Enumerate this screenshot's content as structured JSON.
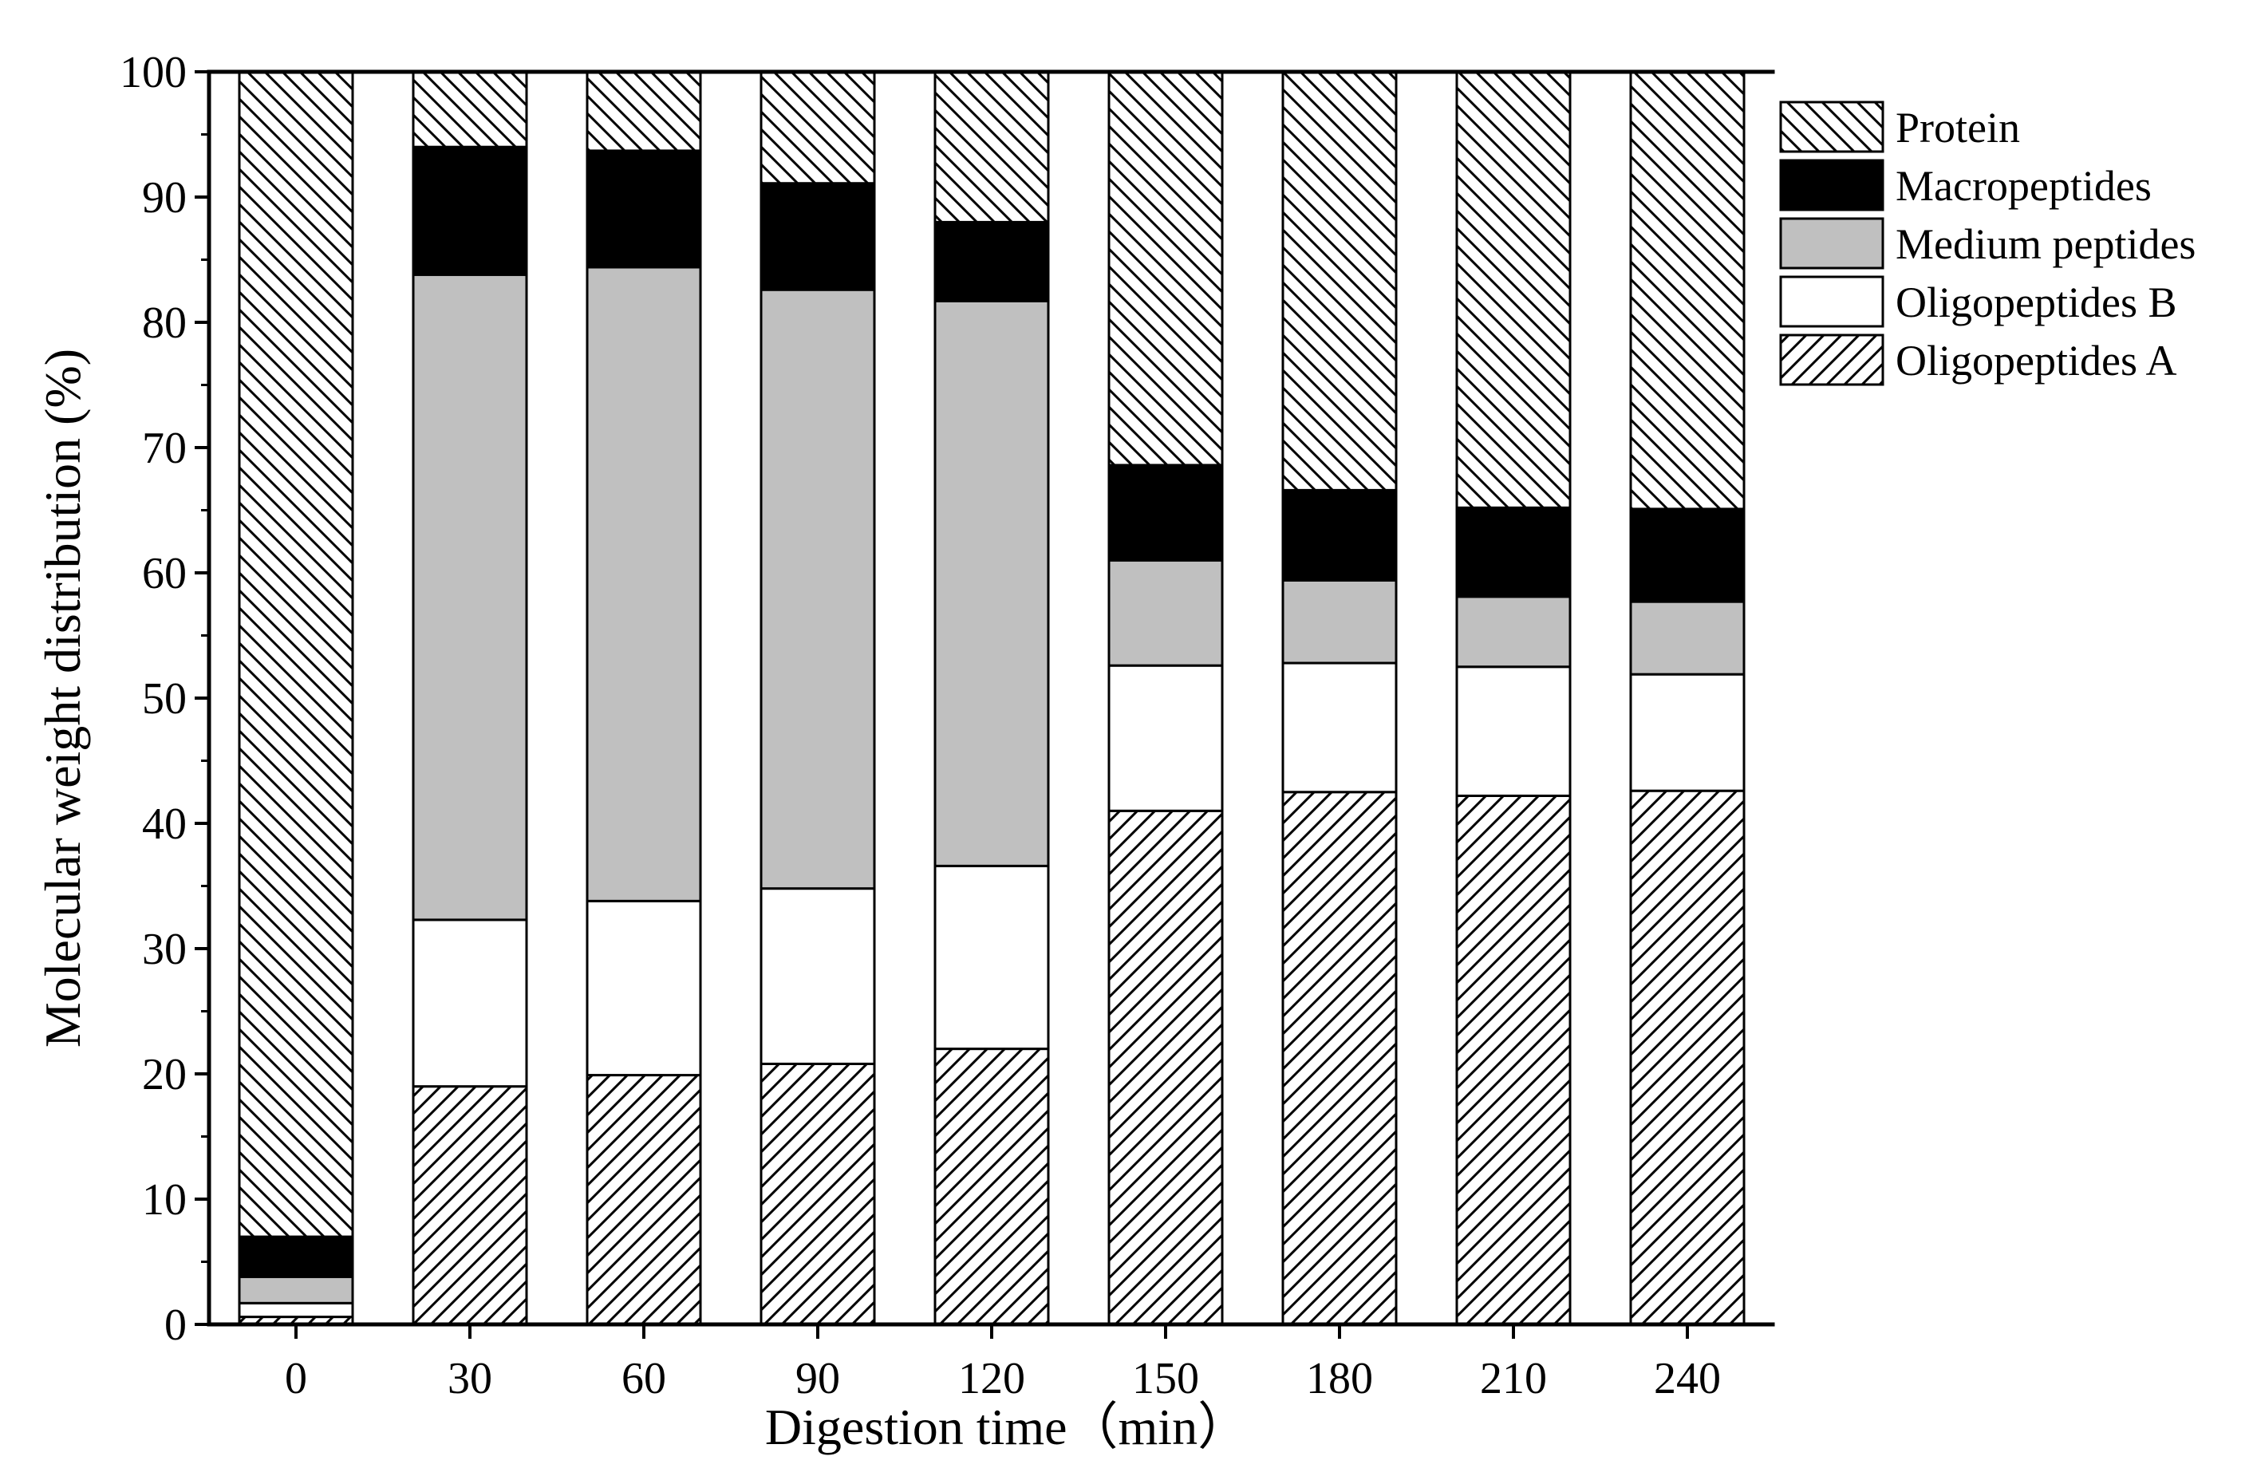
{
  "chart_data": {
    "type": "bar",
    "stacked": true,
    "title": "",
    "xlabel": "Digestion time（min）",
    "ylabel": "Molecular weight distribution (%)",
    "ylim": [
      0,
      100
    ],
    "yticks": [
      0,
      10,
      20,
      30,
      40,
      50,
      60,
      70,
      80,
      90,
      100
    ],
    "categories": [
      "0",
      "30",
      "60",
      "90",
      "120",
      "150",
      "180",
      "210",
      "240"
    ],
    "legend_position": "top-right",
    "series": [
      {
        "name": "Oligopeptides A",
        "pattern": "hatch-forward",
        "values": [
          0.6,
          19.0,
          19.9,
          20.8,
          22.0,
          41.0,
          42.5,
          42.2,
          42.6
        ]
      },
      {
        "name": "Oligopeptides B",
        "pattern": "white",
        "values": [
          1.1,
          13.3,
          13.9,
          14.0,
          14.6,
          11.6,
          10.3,
          10.3,
          9.3
        ]
      },
      {
        "name": "Medium peptides",
        "pattern": "gray",
        "values": [
          2.1,
          51.5,
          50.6,
          47.8,
          45.1,
          8.4,
          6.6,
          5.6,
          5.8
        ]
      },
      {
        "name": "Macropeptides",
        "pattern": "black",
        "values": [
          3.2,
          10.2,
          9.3,
          8.5,
          6.3,
          7.6,
          7.2,
          7.1,
          7.4
        ]
      },
      {
        "name": "Protein",
        "pattern": "hatch-back",
        "values": [
          93.0,
          6.0,
          6.3,
          8.9,
          12.0,
          31.4,
          33.4,
          34.8,
          34.9
        ]
      }
    ],
    "legend_order": [
      "Protein",
      "Macropeptides",
      "Medium peptides",
      "Oligopeptides B",
      "Oligopeptides A"
    ],
    "colors": {
      "gray": "#c0c0c0",
      "black": "#000000",
      "white": "#ffffff"
    }
  }
}
